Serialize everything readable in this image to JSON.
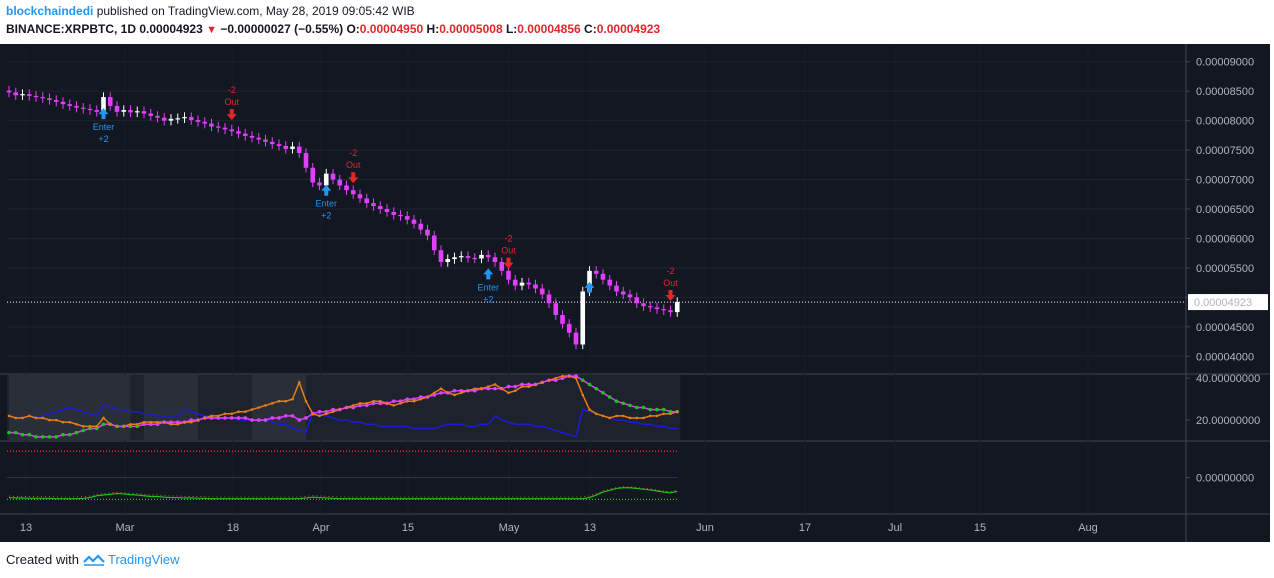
{
  "header": {
    "author": "blockchaindedi",
    "published": "published on TradingView.com, May 28, 2019 09:05:42 WIB",
    "symbol": "BINANCE:XRPBTC, 1D",
    "last": "0.00004923",
    "change": "−0.00000027 (−0.55%)",
    "o_label": "O:",
    "o_value": "0.00004950",
    "h_label": "H:",
    "h_value": "0.00005008",
    "l_label": "L:",
    "l_value": "0.00004856",
    "c_label": "C:",
    "c_value": "0.00004923"
  },
  "footer": {
    "created_with": "Created with",
    "brand": "TradingView"
  },
  "colors": {
    "background": "#131722",
    "bull": "#ffffff",
    "bear": "#e040fb",
    "enter": "#2196f3",
    "out": "#e1262a",
    "adx": "#1c1cd4",
    "di_plus": "#e57c14",
    "di_minus_green": "#21c11d",
    "di_minus_magenta": "#e040fb",
    "osc": "#21c11d"
  },
  "chart_data": {
    "type": "candlestick",
    "symbol": "XRPBTC",
    "timeframe": "1D",
    "y_ticks": [
      "0.00009000",
      "0.00008500",
      "0.00008000",
      "0.00007500",
      "0.00007000",
      "0.00006500",
      "0.00006000",
      "0.00005500",
      "0.00005000",
      "0.00004500",
      "0.00004000"
    ],
    "ylim": [
      3.75e-05,
      9.25e-05
    ],
    "last_price_label": "0.00004923",
    "x_ticks": [
      "13",
      "Mar",
      "18",
      "Apr",
      "15",
      "May",
      "13",
      "Jun",
      "17",
      "Jul",
      "15",
      "Aug"
    ],
    "close_series": [
      8.48e-05,
      8.43e-05,
      8.45e-05,
      8.42e-05,
      8.4e-05,
      8.38e-05,
      8.35e-05,
      8.32e-05,
      8.28e-05,
      8.25e-05,
      8.22e-05,
      8.2e-05,
      8.18e-05,
      8.15e-05,
      8.4e-05,
      8.25e-05,
      8.15e-05,
      8.18e-05,
      8.14e-05,
      8.16e-05,
      8.12e-05,
      8.08e-05,
      8.05e-05,
      8e-05,
      8.03e-05,
      8.04e-05,
      8.06e-05,
      8.01e-05,
      7.98e-05,
      7.95e-05,
      7.9e-05,
      7.88e-05,
      7.85e-05,
      7.82e-05,
      7.78e-05,
      7.74e-05,
      7.71e-05,
      7.68e-05,
      7.64e-05,
      7.6e-05,
      7.57e-05,
      7.52e-05,
      7.56e-05,
      7.45e-05,
      7.2e-05,
      6.95e-05,
      6.9e-05,
      7.1e-05,
      7e-05,
      6.9e-05,
      6.82e-05,
      6.75e-05,
      6.68e-05,
      6.6e-05,
      6.55e-05,
      6.5e-05,
      6.45e-05,
      6.4e-05,
      6.38e-05,
      6.32e-05,
      6.25e-05,
      6.15e-05,
      6.05e-05,
      5.8e-05,
      5.6e-05,
      5.65e-05,
      5.68e-05,
      5.7e-05,
      5.67e-05,
      5.66e-05,
      5.72e-05,
      5.68e-05,
      5.6e-05,
      5.45e-05,
      5.3e-05,
      5.2e-05,
      5.25e-05,
      5.22e-05,
      5.15e-05,
      5.05e-05,
      4.9e-05,
      4.7e-05,
      4.55e-05,
      4.4e-05,
      4.2e-05,
      5.1e-05,
      5.45e-05,
      5.4e-05,
      5.3e-05,
      5.2e-05,
      5.1e-05,
      5.05e-05,
      5e-05,
      4.9e-05,
      4.85e-05,
      4.83e-05,
      4.8e-05,
      4.78e-05,
      4.75e-05,
      4.92e-05
    ],
    "signals": [
      {
        "label": "Enter",
        "qty": "+2",
        "type": "enter",
        "index": 14
      },
      {
        "label": "Out",
        "qty": "-2",
        "type": "out",
        "index": 33
      },
      {
        "label": "Enter",
        "qty": "+2",
        "type": "enter",
        "index": 47
      },
      {
        "label": "Out",
        "qty": "-2",
        "type": "out",
        "index": 51
      },
      {
        "label": "Enter",
        "qty": "+2",
        "type": "enter",
        "index": 71
      },
      {
        "label": "Out",
        "qty": "-2",
        "type": "out",
        "index": 74
      },
      {
        "label": "",
        "qty": "",
        "type": "enter",
        "index": 86
      },
      {
        "label": "Out",
        "qty": "-2",
        "type": "out",
        "index": 98
      }
    ],
    "dmi_panel": {
      "y_ticks": [
        "40.00000000",
        "20.00000000"
      ],
      "ylim": [
        10,
        42
      ],
      "adx": [
        22,
        21,
        21,
        22,
        22,
        22,
        23,
        24,
        25,
        26,
        25,
        24,
        23,
        22,
        27,
        26,
        25,
        25,
        24,
        24,
        23,
        23,
        22,
        22,
        22,
        22,
        25,
        24,
        23,
        22,
        22,
        21,
        21,
        21,
        20,
        20,
        20,
        20,
        20,
        19,
        18,
        18,
        16,
        15,
        14,
        24,
        23,
        22,
        21,
        20,
        20,
        19,
        19,
        18,
        18,
        17,
        17,
        17,
        17,
        17,
        16,
        16,
        16,
        16,
        17,
        18,
        18,
        18,
        17,
        17,
        18,
        18,
        22,
        20,
        19,
        18,
        18,
        18,
        17,
        17,
        16,
        15,
        14,
        13,
        12,
        25,
        24,
        23,
        22,
        21,
        20,
        20,
        19,
        19,
        18,
        18,
        17,
        17,
        16,
        16
      ],
      "di_plus": [
        22,
        21,
        21,
        22,
        21,
        21,
        20,
        20,
        19,
        19,
        18,
        17,
        17,
        17,
        21,
        18,
        17,
        17,
        18,
        18,
        19,
        19,
        19,
        19,
        18,
        18,
        19,
        19,
        20,
        21,
        22,
        22,
        23,
        23,
        24,
        24,
        25,
        26,
        27,
        28,
        29,
        29,
        30,
        38,
        29,
        23,
        22,
        23,
        24,
        25,
        26,
        27,
        28,
        28,
        29,
        29,
        28,
        27,
        28,
        29,
        29,
        30,
        31,
        33,
        35,
        33,
        32,
        33,
        34,
        35,
        35,
        36,
        37,
        35,
        33,
        34,
        36,
        36,
        37,
        38,
        39,
        40,
        41,
        41,
        40,
        32,
        25,
        23,
        22,
        21,
        22,
        22,
        21,
        21,
        21,
        22,
        22,
        23,
        23,
        24
      ],
      "di_minus": [
        14,
        14,
        13,
        13,
        12,
        12,
        12,
        12,
        13,
        13,
        14,
        15,
        16,
        16,
        18,
        18,
        17,
        17,
        17,
        17,
        18,
        18,
        18,
        19,
        19,
        19,
        19,
        20,
        20,
        21,
        21,
        21,
        21,
        21,
        21,
        21,
        20,
        20,
        20,
        21,
        21,
        22,
        22,
        20,
        21,
        23,
        24,
        24,
        25,
        25,
        26,
        26,
        27,
        27,
        28,
        28,
        28,
        29,
        29,
        30,
        30,
        31,
        31,
        32,
        33,
        33,
        34,
        34,
        34,
        34,
        35,
        35,
        35,
        35,
        36,
        36,
        37,
        37,
        37,
        38,
        39,
        39,
        40,
        41,
        41,
        39,
        37,
        35,
        33,
        31,
        29,
        28,
        27,
        26,
        26,
        25,
        25,
        25,
        24,
        24
      ]
    },
    "osc_panel": {
      "y_ticks": [
        "0.00000000"
      ],
      "ylim": [
        -1,
        1
      ],
      "osc": [
        -0.55,
        -0.56,
        -0.56,
        -0.57,
        -0.57,
        -0.57,
        -0.57,
        -0.58,
        -0.58,
        -0.58,
        -0.58,
        -0.57,
        -0.55,
        -0.5,
        -0.48,
        -0.46,
        -0.44,
        -0.45,
        -0.47,
        -0.48,
        -0.5,
        -0.52,
        -0.52,
        -0.54,
        -0.55,
        -0.55,
        -0.56,
        -0.56,
        -0.57,
        -0.57,
        -0.58,
        -0.58,
        -0.58,
        -0.58,
        -0.58,
        -0.58,
        -0.58,
        -0.58,
        -0.58,
        -0.58,
        -0.58,
        -0.58,
        -0.58,
        -0.58,
        -0.56,
        -0.54,
        -0.55,
        -0.56,
        -0.57,
        -0.58,
        -0.58,
        -0.58,
        -0.58,
        -0.58,
        -0.58,
        -0.58,
        -0.58,
        -0.58,
        -0.58,
        -0.58,
        -0.58,
        -0.58,
        -0.58,
        -0.58,
        -0.58,
        -0.58,
        -0.58,
        -0.58,
        -0.58,
        -0.58,
        -0.58,
        -0.58,
        -0.58,
        -0.58,
        -0.58,
        -0.58,
        -0.58,
        -0.58,
        -0.58,
        -0.58,
        -0.58,
        -0.58,
        -0.58,
        -0.58,
        -0.58,
        -0.58,
        -0.55,
        -0.48,
        -0.4,
        -0.35,
        -0.3,
        -0.28,
        -0.28,
        -0.3,
        -0.32,
        -0.34,
        -0.37,
        -0.4,
        -0.42,
        -0.38
      ]
    }
  }
}
